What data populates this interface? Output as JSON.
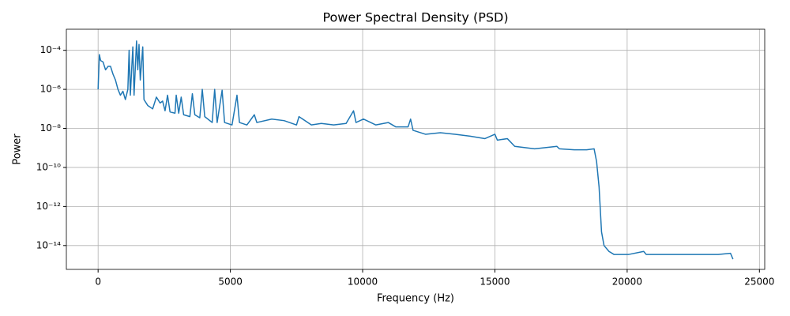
{
  "chart_data": {
    "type": "line",
    "title": "Power Spectral Density (PSD)",
    "x_label": "Frequency (Hz)",
    "y_label": "Power",
    "y_scale": "log",
    "grid": true,
    "xlim": [
      -1200,
      25200
    ],
    "xticks": [
      0,
      5000,
      10000,
      15000,
      20000,
      25000
    ],
    "ylim": [
      6e-16,
      0.0012
    ],
    "yticks": [
      {
        "value": 1e-14,
        "label": "10⁻¹⁴"
      },
      {
        "value": 1e-12,
        "label": "10⁻¹²"
      },
      {
        "value": 1e-10,
        "label": "10⁻¹⁰"
      },
      {
        "value": 1e-08,
        "label": "10⁻⁸"
      },
      {
        "value": 1e-06,
        "label": "10⁻⁶"
      },
      {
        "value": 0.0001,
        "label": "10⁻⁴"
      }
    ],
    "x": [
      0,
      47,
      94,
      188,
      281,
      375,
      469,
      563,
      656,
      750,
      844,
      938,
      1031,
      1125,
      1172,
      1219,
      1313,
      1359,
      1453,
      1500,
      1547,
      1594,
      1688,
      1734,
      1875,
      2063,
      2203,
      2344,
      2438,
      2531,
      2625,
      2719,
      2906,
      2953,
      3047,
      3141,
      3234,
      3469,
      3563,
      3656,
      3844,
      3938,
      4031,
      4313,
      4406,
      4500,
      4688,
      4781,
      5063,
      5250,
      5344,
      5625,
      5906,
      6000,
      6563,
      7031,
      7500,
      7594,
      8063,
      8438,
      8906,
      9375,
      9656,
      9750,
      10031,
      10500,
      10969,
      11250,
      11719,
      11813,
      11906,
      12375,
      12938,
      13500,
      14063,
      14625,
      15000,
      15094,
      15469,
      15750,
      16500,
      17344,
      17438,
      18000,
      18469,
      18750,
      18844,
      18938,
      19031,
      19125,
      19313,
      19500,
      20063,
      20625,
      20719,
      21563,
      22500,
      23438,
      23906,
      24000
    ],
    "series": [
      {
        "color": "#1f77b4",
        "values": [
          1e-06,
          6e-05,
          3e-05,
          2.5e-05,
          1e-05,
          1.5e-05,
          1.5e-05,
          6e-06,
          3e-06,
          1e-06,
          5e-07,
          8e-07,
          3e-07,
          1e-06,
          0.0001,
          5e-07,
          0.00015,
          5e-07,
          0.0003,
          1e-05,
          0.0002,
          3e-06,
          0.00015,
          3e-07,
          1.5e-07,
          1e-07,
          4e-07,
          2e-07,
          2.5e-07,
          8e-08,
          5e-07,
          7e-08,
          6e-08,
          5e-07,
          6e-08,
          4e-07,
          5e-08,
          4e-08,
          6e-07,
          5e-08,
          3.5e-08,
          1e-06,
          4e-08,
          2e-08,
          1e-06,
          2e-08,
          9e-07,
          2e-08,
          1.5e-08,
          5e-07,
          2e-08,
          1.5e-08,
          5e-08,
          2e-08,
          3e-08,
          2.5e-08,
          1.5e-08,
          4e-08,
          1.5e-08,
          1.8e-08,
          1.5e-08,
          1.8e-08,
          8e-08,
          2e-08,
          3e-08,
          1.5e-08,
          2e-08,
          1.2e-08,
          1.2e-08,
          3e-08,
          8e-09,
          5e-09,
          6e-09,
          5e-09,
          4e-09,
          3e-09,
          5e-09,
          2.5e-09,
          3e-09,
          1.2e-09,
          9e-10,
          1.2e-09,
          9e-10,
          8e-10,
          8e-10,
          9e-10,
          2e-10,
          1e-11,
          5e-14,
          1e-14,
          5e-15,
          3.5e-15,
          3.5e-15,
          5e-15,
          3.5e-15,
          3.5e-15,
          3.5e-15,
          3.5e-15,
          4e-15,
          2e-15
        ]
      }
    ]
  }
}
